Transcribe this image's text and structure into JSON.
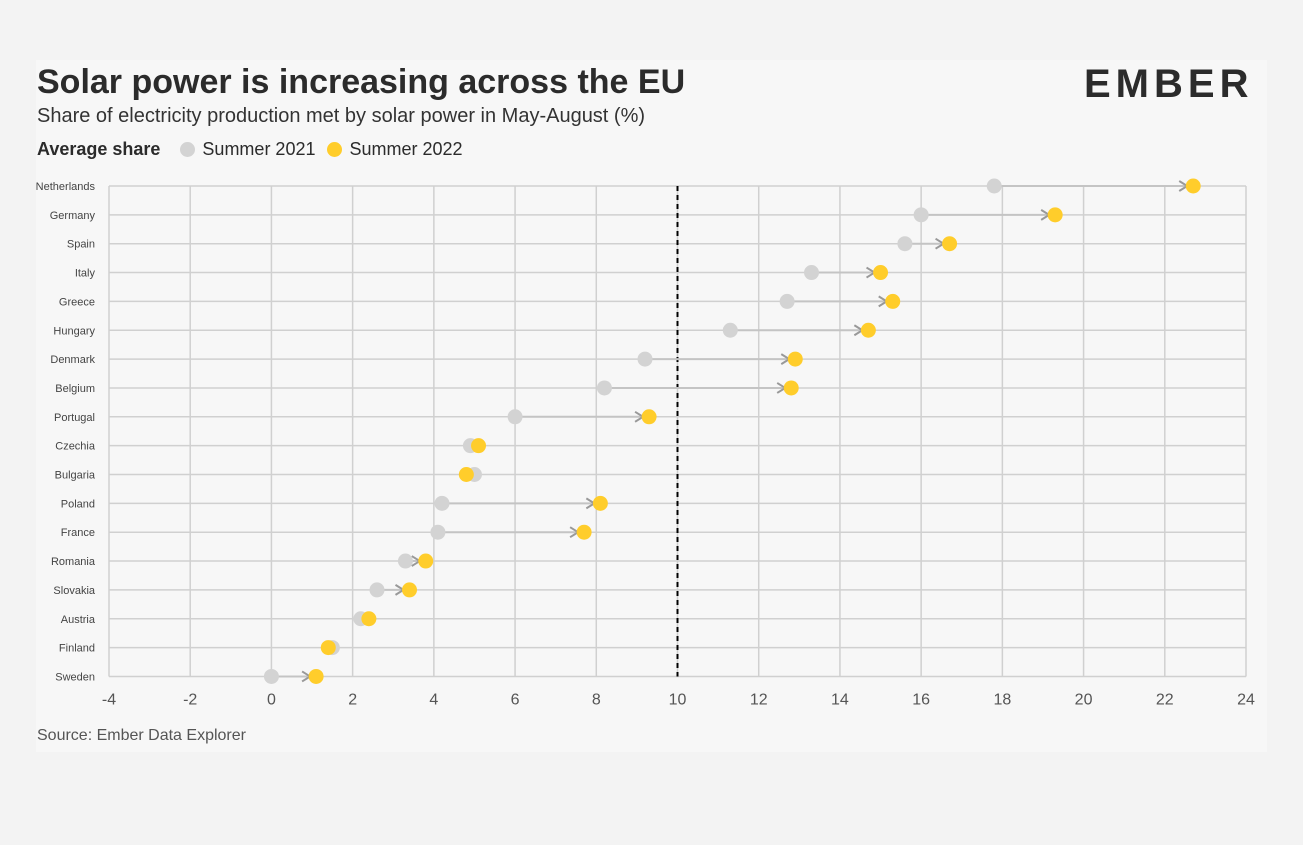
{
  "header": {
    "title": "Solar power is increasing across the EU",
    "subtitle": "Share of electricity production met by solar power in May-August (%)",
    "legend_title": "Average share",
    "logo_text": "EMBER",
    "source": "Source: Ember Data Explorer"
  },
  "colors": {
    "summer_2021": "#d3d3d3",
    "summer_2022": "#ffcd2b",
    "connector": "#c4c4c4",
    "grid": "#d0d0d0",
    "reference_line": "#000000",
    "logo_accent": "#2ec27e"
  },
  "chart_data": {
    "type": "dot-plot",
    "xlim": [
      -4,
      24
    ],
    "x_ticks": [
      "-4",
      "-2",
      "0",
      "2",
      "4",
      "6",
      "8",
      "10",
      "12",
      "14",
      "16",
      "18",
      "20",
      "22",
      "24"
    ],
    "x_tick_values": [
      -4,
      -2,
      0,
      2,
      4,
      6,
      8,
      10,
      12,
      14,
      16,
      18,
      20,
      22,
      24
    ],
    "reference_line_x": 10,
    "grid": true,
    "categories": [
      "Netherlands",
      "Germany",
      "Spain",
      "Italy",
      "Greece",
      "Hungary",
      "Denmark",
      "Belgium",
      "Portugal",
      "Czechia",
      "Bulgaria",
      "Poland",
      "France",
      "Romania",
      "Slovakia",
      "Austria",
      "Finland",
      "Sweden"
    ],
    "series": [
      {
        "name": "Summer 2021",
        "values": [
          17.8,
          16.0,
          15.6,
          13.3,
          12.7,
          11.3,
          9.2,
          8.2,
          6.0,
          4.9,
          5.0,
          4.2,
          4.1,
          3.3,
          2.6,
          2.2,
          1.5,
          0.0
        ]
      },
      {
        "name": "Summer 2022",
        "values": [
          22.7,
          19.3,
          16.7,
          15.0,
          15.3,
          14.7,
          12.9,
          12.8,
          9.3,
          5.1,
          4.8,
          8.1,
          7.7,
          3.8,
          3.4,
          2.4,
          1.4,
          1.1
        ]
      }
    ]
  }
}
